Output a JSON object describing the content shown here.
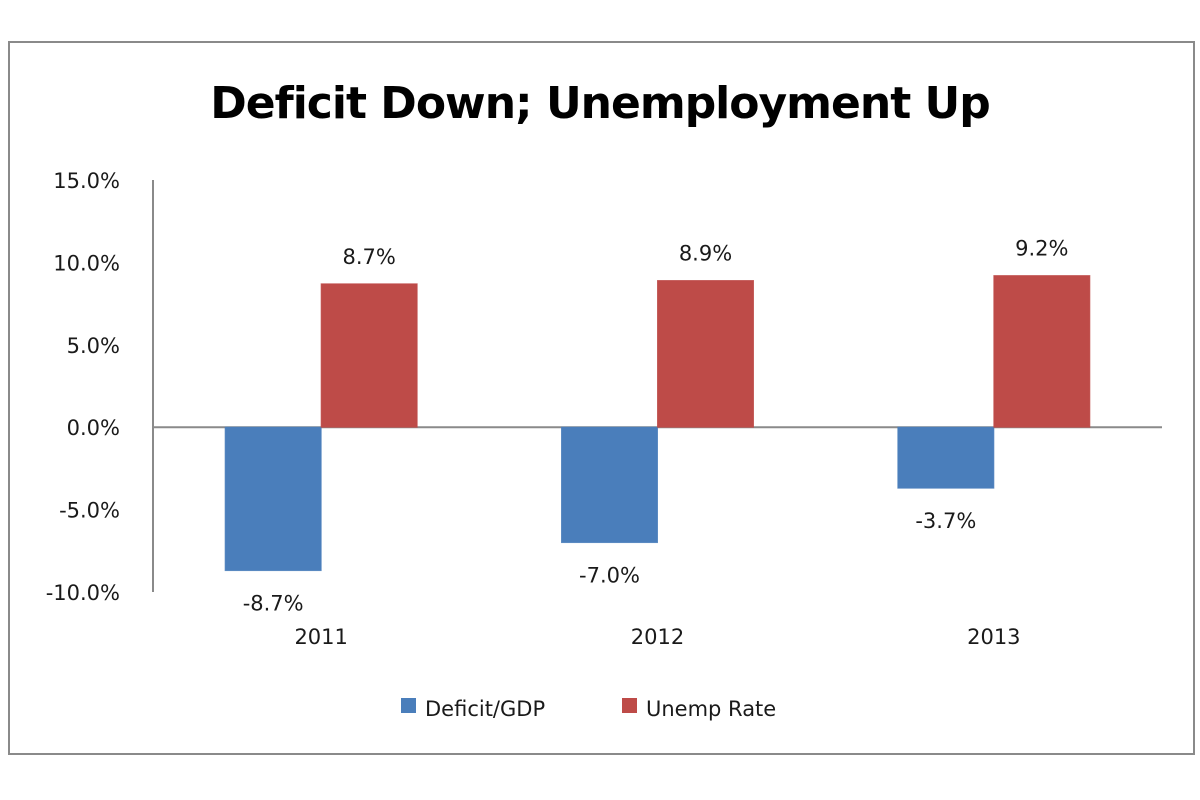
{
  "chart_data": {
    "type": "bar",
    "title": "Deficit Down; Unemployment Up",
    "xlabel": "",
    "ylabel": "",
    "categories": [
      "2011",
      "2012",
      "2013"
    ],
    "series": [
      {
        "name": "Deficit/GDP",
        "color": "#4a7ebb",
        "values": [
          -8.7,
          -7.0,
          -3.7
        ],
        "labels": [
          "-8.7%",
          "-7.0%",
          "-3.7%"
        ]
      },
      {
        "name": "Unemp Rate",
        "color": "#be4b48",
        "values": [
          8.7,
          8.9,
          9.2
        ],
        "labels": [
          "8.7%",
          "8.9%",
          "9.2%"
        ]
      }
    ],
    "ylim": [
      -10,
      15
    ],
    "yticks": [
      15,
      10,
      5,
      0,
      -5,
      -10
    ],
    "ytick_labels": [
      "15.0%",
      "10.0%",
      "5.0%",
      "0.0%",
      "-5.0%",
      "-10.0%"
    ],
    "grid": false,
    "legend": {
      "position": "bottom",
      "entries": [
        "Deficit/GDP",
        "Unemp Rate"
      ]
    }
  }
}
